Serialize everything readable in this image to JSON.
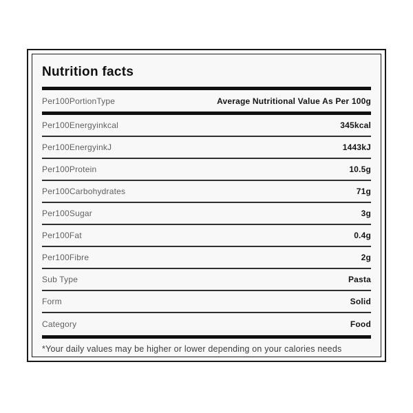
{
  "title": "Nutrition facts",
  "table": {
    "header": {
      "label": "Per100PortionType",
      "value": "Average Nutritional Value As Per 100g"
    },
    "rows": [
      {
        "label": "Per100Energyinkcal",
        "value": "345kcal"
      },
      {
        "label": "Per100EnergyinkJ",
        "value": "1443kJ"
      },
      {
        "label": "Per100Protein",
        "value": "10.5g"
      },
      {
        "label": "Per100Carbohydrates",
        "value": "71g"
      },
      {
        "label": "Per100Sugar",
        "value": "3g"
      },
      {
        "label": "Per100Fat",
        "value": "0.4g"
      },
      {
        "label": "Per100Fibre",
        "value": "2g"
      },
      {
        "label": "Sub Type",
        "value": "Pasta"
      },
      {
        "label": "Form",
        "value": "Solid"
      },
      {
        "label": "Category",
        "value": "Food"
      }
    ],
    "footnote": "*Your daily values may be higher or lower depending on your calories needs"
  },
  "colors": {
    "bar": "#111111",
    "label_text": "#5f5f5f",
    "value_text": "#141414",
    "content_background": "#f8f8f8",
    "border": "#181818",
    "footnote_text": "#3d3d3d"
  }
}
